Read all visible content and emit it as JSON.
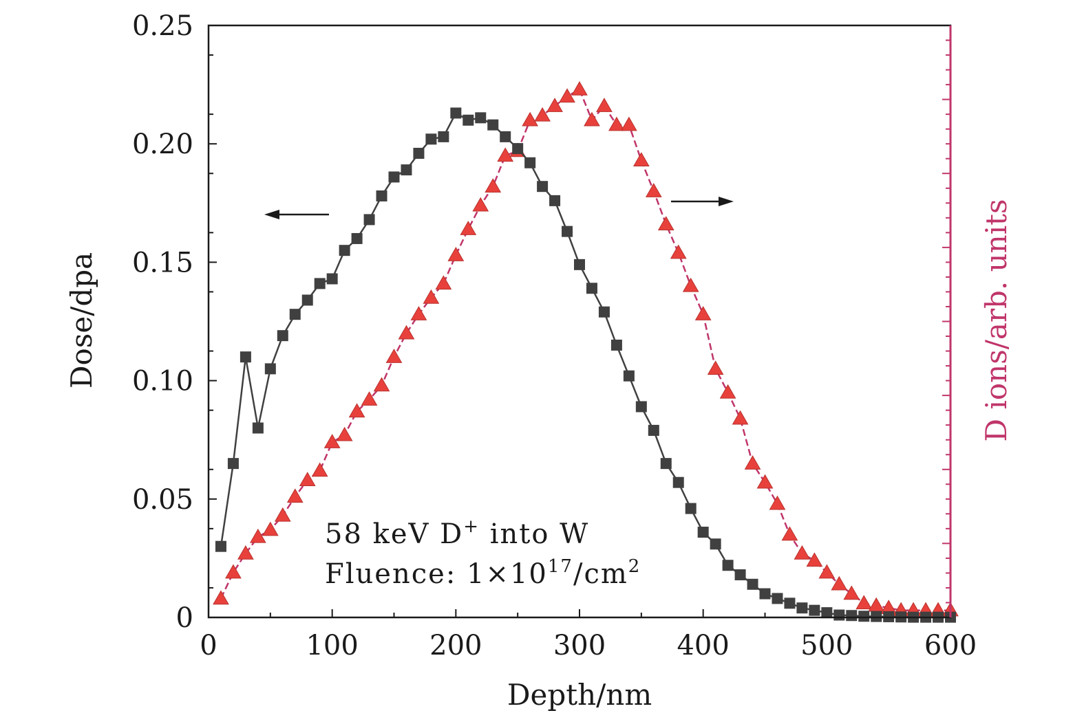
{
  "chart_data": {
    "type": "line",
    "xlabel": "Depth/nm",
    "ylabel_left": "Dose/dpa",
    "ylabel_right": "D ions/arb. units",
    "xlim": [
      0,
      600
    ],
    "ylim_left": [
      0,
      0.25
    ],
    "x_ticks": [
      "0",
      "100",
      "200",
      "300",
      "400",
      "500",
      "600"
    ],
    "y_ticks": [
      "0",
      "0.05",
      "0.10",
      "0.15",
      "0.20",
      "0.25"
    ],
    "annotation_line1": "58 keV D",
    "annotation_line1_sup": "+",
    "annotation_line1_tail": " into W",
    "annotation_line2": "Fluence: 1×10",
    "annotation_line2_sup1": "17",
    "annotation_line2_mid": "/cm",
    "annotation_line2_sup2": "2",
    "colors": {
      "dose": "#404040",
      "ions": "#e8413c",
      "ions_line": "#c0356a",
      "right_axis": "#c0356a"
    },
    "series": [
      {
        "axis": "left",
        "marker": "square",
        "x": [
          10,
          20,
          30,
          40,
          50,
          60,
          70,
          80,
          90,
          100,
          110,
          120,
          130,
          140,
          150,
          160,
          170,
          180,
          190,
          200,
          210,
          220,
          230,
          240,
          250,
          260,
          270,
          280,
          290,
          300,
          310,
          320,
          330,
          340,
          350,
          360,
          370,
          380,
          390,
          400,
          410,
          420,
          430,
          440,
          450,
          460,
          470,
          480,
          490,
          500,
          510,
          520,
          530,
          540,
          550,
          560,
          570,
          580,
          590,
          600
        ],
        "values": [
          0.03,
          0.065,
          0.11,
          0.08,
          0.105,
          0.119,
          0.128,
          0.134,
          0.141,
          0.143,
          0.155,
          0.16,
          0.168,
          0.178,
          0.186,
          0.189,
          0.196,
          0.202,
          0.203,
          0.213,
          0.21,
          0.211,
          0.208,
          0.203,
          0.198,
          0.192,
          0.182,
          0.176,
          0.163,
          0.149,
          0.139,
          0.129,
          0.115,
          0.102,
          0.089,
          0.079,
          0.065,
          0.057,
          0.046,
          0.036,
          0.031,
          0.022,
          0.018,
          0.014,
          0.01,
          0.008,
          0.006,
          0.004,
          0.003,
          0.002,
          0.001,
          0.0008,
          0.0005,
          0.0004,
          0.0003,
          0.0002,
          0.0001,
          0.0001,
          0.0001,
          0.0001
        ]
      },
      {
        "axis": "right",
        "marker": "triangle",
        "x": [
          10,
          20,
          30,
          40,
          50,
          60,
          70,
          80,
          90,
          100,
          110,
          120,
          130,
          140,
          150,
          160,
          170,
          180,
          190,
          200,
          210,
          220,
          230,
          240,
          250,
          260,
          270,
          280,
          290,
          300,
          310,
          320,
          330,
          340,
          350,
          360,
          370,
          380,
          390,
          400,
          410,
          420,
          430,
          440,
          450,
          460,
          470,
          480,
          490,
          500,
          510,
          520,
          530,
          540,
          550,
          560,
          570,
          580,
          590,
          600
        ],
        "values": [
          0.008,
          0.019,
          0.027,
          0.034,
          0.037,
          0.043,
          0.051,
          0.058,
          0.062,
          0.074,
          0.077,
          0.087,
          0.092,
          0.098,
          0.11,
          0.12,
          0.128,
          0.135,
          0.141,
          0.153,
          0.164,
          0.174,
          0.182,
          0.195,
          0.197,
          0.21,
          0.212,
          0.216,
          0.22,
          0.223,
          0.21,
          0.216,
          0.208,
          0.208,
          0.193,
          0.18,
          0.166,
          0.154,
          0.14,
          0.128,
          0.105,
          0.095,
          0.084,
          0.065,
          0.057,
          0.048,
          0.035,
          0.027,
          0.024,
          0.019,
          0.014,
          0.01,
          0.006,
          0.005,
          0.004,
          0.003,
          0.003,
          0.003,
          0.003,
          0.003
        ]
      }
    ]
  }
}
